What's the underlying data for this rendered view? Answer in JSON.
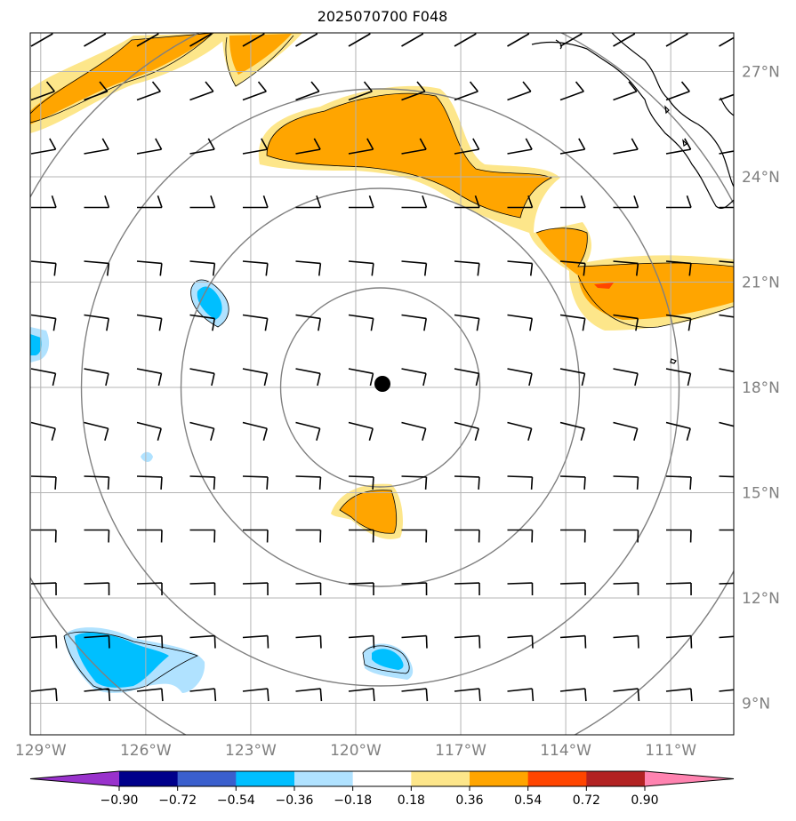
{
  "title": "2025070700 F048",
  "lon_ticks": [
    {
      "value": -129,
      "label": "129°W"
    },
    {
      "value": -126,
      "label": "126°W"
    },
    {
      "value": -123,
      "label": "123°W"
    },
    {
      "value": -120,
      "label": "120°W"
    },
    {
      "value": -117,
      "label": "117°W"
    },
    {
      "value": -114,
      "label": "114°W"
    },
    {
      "value": -111,
      "label": "111°W"
    }
  ],
  "lat_ticks": [
    {
      "value": 27,
      "label": "27°N"
    },
    {
      "value": 24,
      "label": "24°N"
    },
    {
      "value": 21,
      "label": "21°N"
    },
    {
      "value": 18,
      "label": "18°N"
    },
    {
      "value": 15,
      "label": "15°N"
    },
    {
      "value": 12,
      "label": "12°N"
    },
    {
      "value": 9,
      "label": "9°N"
    }
  ],
  "map_extent": {
    "lon": [
      -129.3,
      -109.2
    ],
    "lat": [
      8.1,
      28.1
    ]
  },
  "center": {
    "lon": -119.3,
    "lat": 18.1
  },
  "range_rings": [
    300,
    600,
    900,
    1200
  ],
  "range_ring_color": "#808080",
  "colorbar": {
    "colors": [
      "#9932cc",
      "#00008b",
      "#3a5fcd",
      "#00bfff",
      "#b0e2ff",
      "#ffffff",
      "#fde68a",
      "#ffa500",
      "#ff4500",
      "#b22222",
      "#ff83b0"
    ],
    "tick_labels": [
      "−0.90",
      "−0.72",
      "−0.54",
      "−0.36",
      "−0.18",
      "0.18",
      "0.36",
      "0.54",
      "0.72",
      "0.90"
    ]
  }
}
